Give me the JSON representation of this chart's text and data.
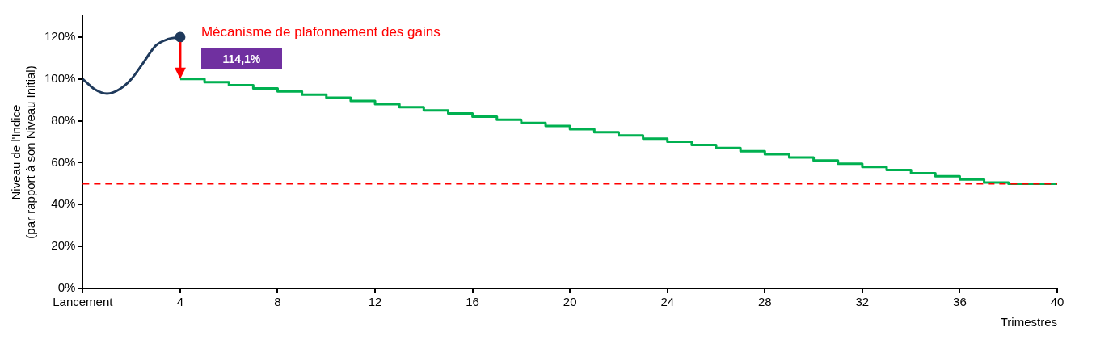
{
  "chart_data": {
    "type": "line",
    "xlabel": "Trimestres",
    "ylabel": "Niveau de l'Indice\n(par rapport à son Niveau Initial)",
    "xlim": [
      0,
      40
    ],
    "xticks": [
      {
        "value": 0,
        "label": "Lancement"
      },
      4,
      8,
      12,
      16,
      20,
      24,
      28,
      32,
      36,
      40
    ],
    "ylim": [
      0,
      130
    ],
    "yticks": [
      {
        "value": 0,
        "label": "0%"
      },
      {
        "value": 20,
        "label": "20%"
      },
      {
        "value": 40,
        "label": "40%"
      },
      {
        "value": 60,
        "label": "60%"
      },
      {
        "value": 80,
        "label": "80%"
      },
      {
        "value": 100,
        "label": "100%"
      },
      {
        "value": 120,
        "label": "120%"
      }
    ],
    "grid": false,
    "legend": false,
    "series": [
      {
        "type": "line",
        "color": "#1f3a5c",
        "x": [
          0,
          0.5,
          1,
          1.5,
          2,
          2.5,
          3,
          3.5,
          4
        ],
        "values": [
          100,
          95,
          93,
          95,
          100,
          108,
          116,
          119,
          120
        ]
      },
      {
        "type": "scatter",
        "color": "#1f3a5c",
        "x": [
          4
        ],
        "values": [
          120
        ],
        "marker": "circle"
      },
      {
        "type": "step",
        "color": "#00b050",
        "x": [
          4,
          5,
          6,
          7,
          8,
          9,
          10,
          11,
          12,
          13,
          14,
          15,
          16,
          17,
          18,
          19,
          20,
          21,
          22,
          23,
          24,
          25,
          26,
          27,
          28,
          29,
          30,
          31,
          32,
          33,
          34,
          35,
          36,
          37,
          38,
          39,
          40
        ],
        "values": [
          100,
          98.5,
          97,
          95.5,
          94,
          92.5,
          91,
          89.5,
          88,
          86.5,
          85,
          83.5,
          82,
          80.5,
          79,
          77.5,
          76,
          74.5,
          73,
          71.5,
          70,
          68.5,
          67,
          65.5,
          64,
          62.5,
          61,
          59.5,
          58,
          56.5,
          55,
          53.5,
          52,
          50.5,
          50,
          50,
          50
        ]
      }
    ],
    "ref_lines": [
      {
        "axis": "y",
        "value": 50,
        "color": "#ff0000",
        "line_style": "dashed"
      }
    ],
    "annotations": [
      "Mécanisme de plafonnement des gains",
      "114,1%"
    ]
  }
}
